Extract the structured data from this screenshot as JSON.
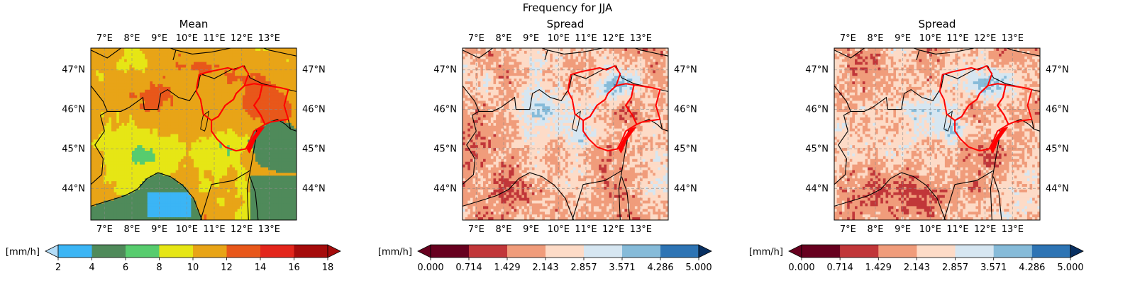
{
  "suptitle": "Frequency for JJA",
  "colors": {
    "mean_levels": [
      "#b3dcf7",
      "#3bb5f5",
      "#4f8a5a",
      "#57cc6e",
      "#e6e615",
      "#e8a417",
      "#e8571a",
      "#e3251b",
      "#a50b0b"
    ],
    "spread_levels": [
      "#67001f",
      "#c13639",
      "#f09c7b",
      "#fddbc7",
      "#d6e6f1",
      "#86bbd9",
      "#2d74b4",
      "#083062"
    ],
    "boundary": "#ff0000",
    "coast": "#000000"
  },
  "chart_data": [
    {
      "type": "heatmap",
      "title": "Mean",
      "x_ticks": [
        "7°E",
        "8°E",
        "9°E",
        "10°E",
        "11°E",
        "12°E",
        "13°E"
      ],
      "x_tick_values": [
        7,
        8,
        9,
        10,
        11,
        12,
        13
      ],
      "y_ticks": [
        "47°N",
        "46°N",
        "45°N",
        "44°N"
      ],
      "y_tick_values": [
        47,
        46,
        45,
        44
      ],
      "xlim": [
        6.5,
        14.0
      ],
      "ylim": [
        43.2,
        47.55
      ],
      "grid": true,
      "colorbar": {
        "label": "[mm/h]",
        "ticks": [
          "2",
          "4",
          "6",
          "8",
          "10",
          "12",
          "14",
          "16",
          "18"
        ],
        "values": [
          2,
          4,
          6,
          8,
          10,
          12,
          14,
          16,
          18
        ],
        "extend": "both"
      }
    },
    {
      "type": "heatmap",
      "title": "Spread",
      "x_ticks": [
        "7°E",
        "8°E",
        "9°E",
        "10°E",
        "11°E",
        "12°E",
        "13°E"
      ],
      "x_tick_values": [
        7,
        8,
        9,
        10,
        11,
        12,
        13
      ],
      "y_ticks": [
        "47°N",
        "46°N",
        "45°N",
        "44°N"
      ],
      "y_tick_values": [
        47,
        46,
        45,
        44
      ],
      "xlim": [
        6.5,
        14.0
      ],
      "ylim": [
        43.2,
        47.55
      ],
      "grid": true,
      "colorbar": {
        "label": "[mm/h]",
        "ticks": [
          "0.000",
          "0.714",
          "1.429",
          "2.143",
          "2.857",
          "3.571",
          "4.286",
          "5.000"
        ],
        "values": [
          0.0,
          0.714,
          1.429,
          2.143,
          2.857,
          3.571,
          4.286,
          5.0
        ],
        "extend": "both"
      }
    },
    {
      "type": "heatmap",
      "title": "Spread",
      "x_ticks": [
        "7°E",
        "8°E",
        "9°E",
        "10°E",
        "11°E",
        "12°E",
        "13°E"
      ],
      "x_tick_values": [
        7,
        8,
        9,
        10,
        11,
        12,
        13
      ],
      "y_ticks": [
        "47°N",
        "46°N",
        "45°N",
        "44°N"
      ],
      "y_tick_values": [
        47,
        46,
        45,
        44
      ],
      "xlim": [
        6.5,
        14.0
      ],
      "ylim": [
        43.2,
        47.55
      ],
      "grid": true,
      "colorbar": {
        "label": "[mm/h]",
        "ticks": [
          "0.000",
          "0.714",
          "1.429",
          "2.143",
          "2.857",
          "3.571",
          "4.286",
          "5.000"
        ],
        "values": [
          0.0,
          0.714,
          1.429,
          2.143,
          2.857,
          3.571,
          4.286,
          5.0
        ],
        "extend": "both"
      }
    }
  ]
}
